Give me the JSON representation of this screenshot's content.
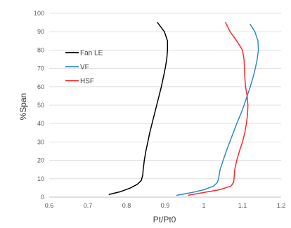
{
  "chart_data": {
    "type": "line",
    "title": "",
    "xlabel": "Pt/Pt0",
    "ylabel": "%Span",
    "xlim": [
      0.6,
      1.2
    ],
    "ylim": [
      0,
      100
    ],
    "xticks": [
      0.6,
      0.7,
      0.8,
      0.9,
      1,
      1.1,
      1.2
    ],
    "yticks": [
      0,
      10,
      20,
      30,
      40,
      50,
      60,
      70,
      80,
      90,
      100
    ],
    "grid": "horizontal",
    "legend_position": "left",
    "series": [
      {
        "name": "Fan LE",
        "color": "#000000",
        "points": [
          [
            0.755,
            1.5
          ],
          [
            0.785,
            3
          ],
          [
            0.81,
            5
          ],
          [
            0.828,
            7
          ],
          [
            0.838,
            9
          ],
          [
            0.842,
            12
          ],
          [
            0.843,
            15
          ],
          [
            0.846,
            20
          ],
          [
            0.85,
            25
          ],
          [
            0.855,
            30
          ],
          [
            0.86,
            35
          ],
          [
            0.866,
            40
          ],
          [
            0.872,
            45
          ],
          [
            0.878,
            50
          ],
          [
            0.884,
            55
          ],
          [
            0.89,
            60
          ],
          [
            0.895,
            65
          ],
          [
            0.9,
            70
          ],
          [
            0.904,
            75
          ],
          [
            0.906,
            80
          ],
          [
            0.906,
            85
          ],
          [
            0.898,
            90
          ],
          [
            0.88,
            95
          ]
        ]
      },
      {
        "name": "VF",
        "color": "#2e8bcb",
        "points": [
          [
            0.93,
            1
          ],
          [
            0.97,
            2.5
          ],
          [
            1.0,
            4
          ],
          [
            1.025,
            6
          ],
          [
            1.035,
            8
          ],
          [
            1.038,
            10
          ],
          [
            1.042,
            15
          ],
          [
            1.05,
            20
          ],
          [
            1.058,
            25
          ],
          [
            1.067,
            30
          ],
          [
            1.076,
            35
          ],
          [
            1.085,
            40
          ],
          [
            1.095,
            45
          ],
          [
            1.104,
            50
          ],
          [
            1.112,
            55
          ],
          [
            1.12,
            60
          ],
          [
            1.127,
            65
          ],
          [
            1.133,
            70
          ],
          [
            1.138,
            75
          ],
          [
            1.141,
            80
          ],
          [
            1.14,
            85
          ],
          [
            1.132,
            90
          ],
          [
            1.12,
            94
          ]
        ]
      },
      {
        "name": "HSF",
        "color": "#ff2a2a",
        "points": [
          [
            0.96,
            1
          ],
          [
            1.0,
            2.5
          ],
          [
            1.04,
            4
          ],
          [
            1.07,
            6
          ],
          [
            1.077,
            8
          ],
          [
            1.078,
            10
          ],
          [
            1.08,
            15
          ],
          [
            1.085,
            20
          ],
          [
            1.092,
            25
          ],
          [
            1.1,
            30
          ],
          [
            1.106,
            35
          ],
          [
            1.11,
            40
          ],
          [
            1.113,
            45
          ],
          [
            1.114,
            50
          ],
          [
            1.112,
            55
          ],
          [
            1.108,
            60
          ],
          [
            1.106,
            65
          ],
          [
            1.105,
            70
          ],
          [
            1.104,
            75
          ],
          [
            1.1,
            80
          ],
          [
            1.085,
            85
          ],
          [
            1.068,
            90
          ],
          [
            1.056,
            95
          ]
        ]
      }
    ]
  }
}
